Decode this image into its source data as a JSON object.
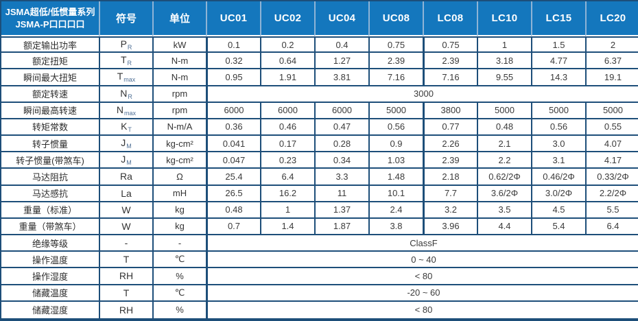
{
  "table": {
    "header": {
      "series_title_line1": "JSMA超低/低惯量系列",
      "series_title_line2": "JSMA-P口口口口",
      "symbol_col": "符号",
      "unit_col": "单位",
      "models": [
        "UC01",
        "UC02",
        "UC04",
        "UC08",
        "LC08",
        "LC10",
        "LC15",
        "LC20"
      ]
    },
    "rows": [
      {
        "label": "额定输出功率",
        "symbol_base": "P",
        "symbol_sub": "R",
        "unit": "kW",
        "values": [
          "0.1",
          "0.2",
          "0.4",
          "0.75",
          "0.75",
          "1",
          "1.5",
          "2"
        ]
      },
      {
        "label": "额定扭矩",
        "symbol_base": "T",
        "symbol_sub": "R",
        "unit": "N-m",
        "values": [
          "0.32",
          "0.64",
          "1.27",
          "2.39",
          "2.39",
          "3.18",
          "4.77",
          "6.37"
        ]
      },
      {
        "label": "瞬间最大扭矩",
        "symbol_base": "T",
        "symbol_sub": "max",
        "unit": "N-m",
        "values": [
          "0.95",
          "1.91",
          "3.81",
          "7.16",
          "7.16",
          "9.55",
          "14.3",
          "19.1"
        ]
      },
      {
        "label": "额定转速",
        "symbol_base": "N",
        "symbol_sub": "R",
        "unit": "rpm",
        "merged": "3000"
      },
      {
        "label": "瞬间最高转速",
        "symbol_base": "N",
        "symbol_sub": "max",
        "unit": "rpm",
        "values": [
          "6000",
          "6000",
          "6000",
          "5000",
          "3800",
          "5000",
          "5000",
          "5000"
        ]
      },
      {
        "label": "转矩常数",
        "symbol_base": "K",
        "symbol_sub": "T",
        "unit": "N-m/A",
        "values": [
          "0.36",
          "0.46",
          "0.47",
          "0.56",
          "0.77",
          "0.48",
          "0.56",
          "0.55"
        ]
      },
      {
        "label": "转子惯量",
        "symbol_base": "J",
        "symbol_sub": "M",
        "unit": "kg-cm²",
        "values": [
          "0.041",
          "0.17",
          "0.28",
          "0.9",
          "2.26",
          "2.1",
          "3.0",
          "4.07"
        ]
      },
      {
        "label": "转子惯量(带煞车)",
        "symbol_base": "J",
        "symbol_sub": "M",
        "unit": "kg-cm²",
        "values": [
          "0.047",
          "0.23",
          "0.34",
          "1.03",
          "2.39",
          "2.2",
          "3.1",
          "4.17"
        ]
      },
      {
        "label": "马达阻抗",
        "symbol_base": "Ra",
        "symbol_sub": "",
        "unit": "Ω",
        "values": [
          "25.4",
          "6.4",
          "3.3",
          "1.48",
          "2.18",
          "0.62/2Φ",
          "0.46/2Φ",
          "0.33/2Φ"
        ]
      },
      {
        "label": "马达感抗",
        "symbol_base": "La",
        "symbol_sub": "",
        "unit": "mH",
        "values": [
          "26.5",
          "16.2",
          "11",
          "10.1",
          "7.7",
          "3.6/2Φ",
          "3.0/2Φ",
          "2.2/2Φ"
        ]
      },
      {
        "label": "重量（标准）",
        "symbol_base": "W",
        "symbol_sub": "",
        "unit": "kg",
        "values": [
          "0.48",
          "1",
          "1.37",
          "2.4",
          "3.2",
          "3.5",
          "4.5",
          "5.5"
        ]
      },
      {
        "label": "重量（带煞车）",
        "symbol_base": "W",
        "symbol_sub": "",
        "unit": "kg",
        "values": [
          "0.7",
          "1.4",
          "1.87",
          "3.8",
          "3.96",
          "4.4",
          "5.4",
          "6.4"
        ]
      },
      {
        "label": "绝缘等级",
        "symbol_base": "-",
        "symbol_sub": "",
        "unit": "-",
        "merged": "ClassF"
      },
      {
        "label": "操作温度",
        "symbol_base": "T",
        "symbol_sub": "",
        "unit": "℃",
        "merged": "0 ~ 40"
      },
      {
        "label": "操作湿度",
        "symbol_base": "RH",
        "symbol_sub": "",
        "unit": "%",
        "merged": "< 80"
      },
      {
        "label": "储藏温度",
        "symbol_base": "T",
        "symbol_sub": "",
        "unit": "℃",
        "merged": "-20 ~ 60"
      },
      {
        "label": "储藏湿度",
        "symbol_base": "RH",
        "symbol_sub": "",
        "unit": "%",
        "merged": "< 80"
      }
    ],
    "colors": {
      "header_bg": "#1477bd",
      "header_divider": "#8fb4d6",
      "grid_border": "#1d4e79",
      "header_text": "#ffffff",
      "body_text": "#3a3a3a"
    }
  }
}
